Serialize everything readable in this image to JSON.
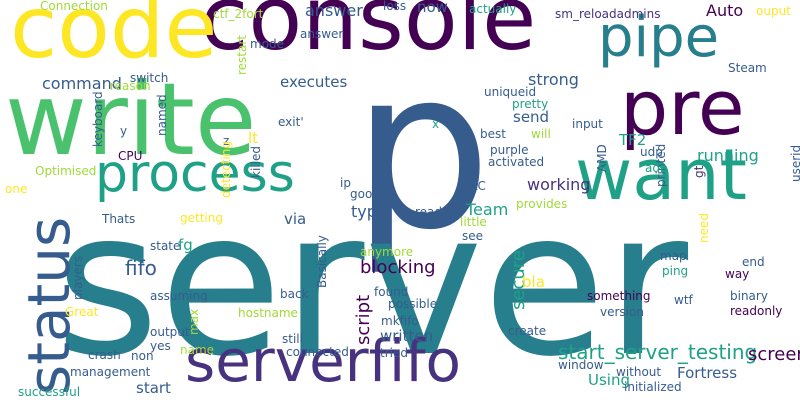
{
  "palette": {
    "yellow": "#fde725",
    "lightgreen": "#a0da39",
    "green": "#4ac16d",
    "teal": "#1fa187",
    "blue": "#277f8e",
    "slate": "#365c8d",
    "indigo": "#46327e",
    "purple": "#440154"
  },
  "words": [
    {
      "text": "p",
      "color": "slate"
    },
    {
      "text": "server",
      "color": "blue"
    },
    {
      "text": "console",
      "color": "purple"
    },
    {
      "text": "code",
      "color": "yellow"
    },
    {
      "text": "write",
      "color": "green"
    },
    {
      "text": "pipe",
      "color": "blue"
    },
    {
      "text": "pre",
      "color": "purple"
    },
    {
      "text": "want",
      "color": "teal"
    },
    {
      "text": "process",
      "color": "teal"
    },
    {
      "text": "serverfifo",
      "color": "indigo"
    },
    {
      "text": "status",
      "color": "slate"
    },
    {
      "text": "start_server_testing",
      "color": "teal"
    },
    {
      "text": "screen",
      "color": "purple"
    },
    {
      "text": "script",
      "color": "purple"
    },
    {
      "text": "secure",
      "color": "teal"
    },
    {
      "text": "fifo",
      "color": "slate"
    },
    {
      "text": "blocking",
      "color": "purple"
    },
    {
      "text": "executes",
      "color": "slate"
    },
    {
      "text": "command",
      "color": "slate"
    },
    {
      "text": "answer",
      "color": "slate"
    },
    {
      "text": "Auto",
      "color": "purple"
    },
    {
      "text": "strong",
      "color": "slate"
    },
    {
      "text": "running",
      "color": "teal"
    },
    {
      "text": "working",
      "color": "indigo"
    },
    {
      "text": "Team",
      "color": "teal"
    },
    {
      "text": "type",
      "color": "slate"
    },
    {
      "text": "Fortress",
      "color": "slate"
    },
    {
      "text": "written",
      "color": "slate"
    },
    {
      "text": "Using",
      "color": "teal"
    },
    {
      "text": "TF2",
      "color": "teal"
    },
    {
      "text": "send",
      "color": "slate"
    },
    {
      "text": "via",
      "color": "slate"
    },
    {
      "text": "fg",
      "color": "teal"
    },
    {
      "text": "bla",
      "color": "yellow"
    },
    {
      "text": "lt",
      "color": "yellow"
    },
    {
      "text": "start",
      "color": "slate"
    },
    {
      "text": "now",
      "color": "slate"
    },
    {
      "text": "Connection",
      "color": "lightgreen"
    },
    {
      "text": "ctf_2fort",
      "color": "lightgreen"
    },
    {
      "text": "loss",
      "color": "slate"
    },
    {
      "text": "answer",
      "color": "slate"
    },
    {
      "text": "actually",
      "color": "teal"
    },
    {
      "text": "sm_reloadadmins",
      "color": "indigo"
    },
    {
      "text": "ouput",
      "color": "yellow"
    },
    {
      "text": "restart",
      "color": "lightgreen"
    },
    {
      "text": "mode",
      "color": "slate"
    },
    {
      "text": "switch",
      "color": "slate"
    },
    {
      "text": "reason",
      "color": "lightgreen"
    },
    {
      "text": "uniqueid",
      "color": "slate"
    },
    {
      "text": "pretty",
      "color": "teal"
    },
    {
      "text": "input",
      "color": "slate"
    },
    {
      "text": "Steam",
      "color": "slate"
    },
    {
      "text": "keyboard",
      "color": "slate"
    },
    {
      "text": "named",
      "color": "slate"
    },
    {
      "text": "exit'",
      "color": "slate"
    },
    {
      "text": "x",
      "color": "teal"
    },
    {
      "text": "best",
      "color": "slate"
    },
    {
      "text": "printed",
      "color": "slate"
    },
    {
      "text": "userid",
      "color": "slate"
    },
    {
      "text": "will",
      "color": "lightgreen"
    },
    {
      "text": "udp",
      "color": "slate"
    },
    {
      "text": "y",
      "color": "slate"
    },
    {
      "text": "z",
      "color": "slate"
    },
    {
      "text": "detecting",
      "color": "yellow"
    },
    {
      "text": "CPU",
      "color": "purple"
    },
    {
      "text": "killed",
      "color": "slate"
    },
    {
      "text": "purple",
      "color": "slate"
    },
    {
      "text": "activated",
      "color": "slate"
    },
    {
      "text": "AMD",
      "color": "slate"
    },
    {
      "text": "adr",
      "color": "teal"
    },
    {
      "text": "gt",
      "color": "indigo"
    },
    {
      "text": "Optimised",
      "color": "lightgreen"
    },
    {
      "text": "one",
      "color": "yellow"
    },
    {
      "text": "ip",
      "color": "slate"
    },
    {
      "text": "VAC",
      "color": "slate"
    },
    {
      "text": "good",
      "color": "slate"
    },
    {
      "text": "provides",
      "color": "lightgreen"
    },
    {
      "text": "getting",
      "color": "yellow"
    },
    {
      "text": "Thats",
      "color": "slate"
    },
    {
      "text": "read",
      "color": "slate"
    },
    {
      "text": "little",
      "color": "lightgreen"
    },
    {
      "text": "see",
      "color": "slate"
    },
    {
      "text": "need",
      "color": "yellow"
    },
    {
      "text": "map",
      "color": "slate"
    },
    {
      "text": "ping",
      "color": "teal"
    },
    {
      "text": "end",
      "color": "slate"
    },
    {
      "text": "way",
      "color": "purple"
    },
    {
      "text": "state",
      "color": "slate"
    },
    {
      "text": "anymore",
      "color": "lightgreen"
    },
    {
      "text": "Basically",
      "color": "slate"
    },
    {
      "text": "players",
      "color": "slate"
    },
    {
      "text": "assuming",
      "color": "slate"
    },
    {
      "text": "back",
      "color": "slate"
    },
    {
      "text": "found",
      "color": "slate"
    },
    {
      "text": "possible",
      "color": "slate"
    },
    {
      "text": "something",
      "color": "purple"
    },
    {
      "text": "wtf",
      "color": "slate"
    },
    {
      "text": "binary",
      "color": "slate"
    },
    {
      "text": "readonly",
      "color": "purple"
    },
    {
      "text": "Great",
      "color": "yellow"
    },
    {
      "text": "max",
      "color": "lightgreen"
    },
    {
      "text": "hostname",
      "color": "lightgreen"
    },
    {
      "text": "mkfifo",
      "color": "slate"
    },
    {
      "text": "version",
      "color": "slate"
    },
    {
      "text": "output",
      "color": "slate"
    },
    {
      "text": "yes",
      "color": "slate"
    },
    {
      "text": "still",
      "color": "slate"
    },
    {
      "text": "create",
      "color": "slate"
    },
    {
      "text": "crash",
      "color": "slate"
    },
    {
      "text": "non",
      "color": "slate"
    },
    {
      "text": "name",
      "color": "lightgreen"
    },
    {
      "text": "connected",
      "color": "slate"
    },
    {
      "text": "tried",
      "color": "slate"
    },
    {
      "text": "window",
      "color": "slate"
    },
    {
      "text": "without",
      "color": "slate"
    },
    {
      "text": "management",
      "color": "slate"
    },
    {
      "text": "initialized",
      "color": "slate"
    },
    {
      "text": "successful",
      "color": "teal"
    }
  ]
}
